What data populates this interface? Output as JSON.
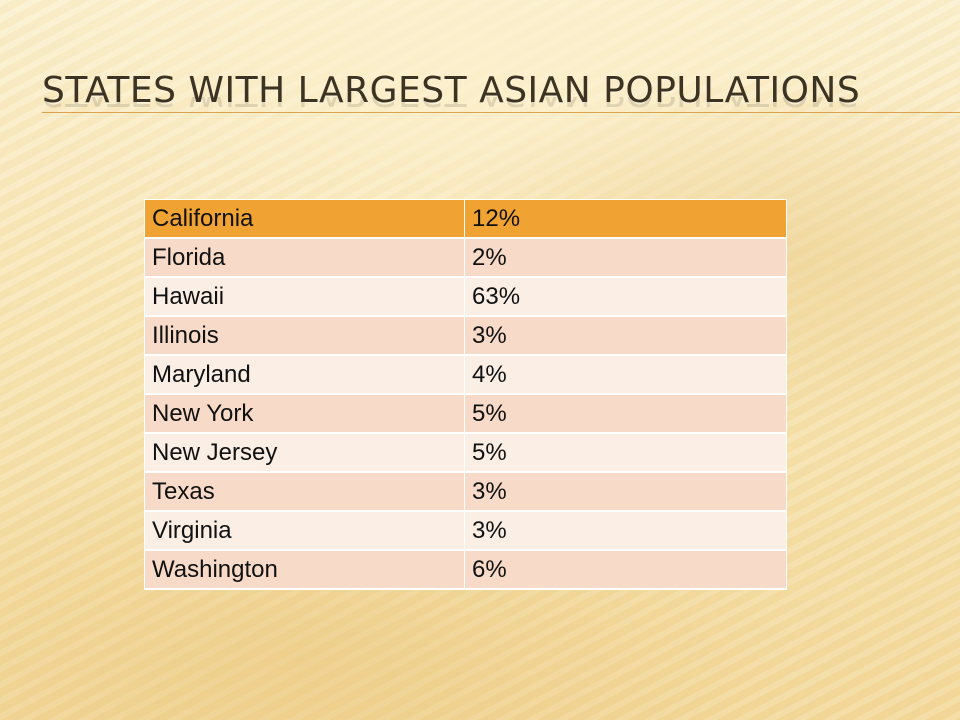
{
  "slide": {
    "title": "STATES WITH LARGEST ASIAN POPULATIONS"
  },
  "table": {
    "rows": [
      {
        "state": "California",
        "percent": "12%"
      },
      {
        "state": "Florida",
        "percent": "2%"
      },
      {
        "state": "Hawaii",
        "percent": "63%"
      },
      {
        "state": "Illinois",
        "percent": "3%"
      },
      {
        "state": "Maryland",
        "percent": "4%"
      },
      {
        "state": "New York",
        "percent": "5%"
      },
      {
        "state": "New Jersey",
        "percent": "5%"
      },
      {
        "state": "Texas",
        "percent": "3%"
      },
      {
        "state": "Virginia",
        "percent": "3%"
      },
      {
        "state": "Washington",
        "percent": "6%"
      }
    ]
  },
  "colors": {
    "header_fill": "#f0a332",
    "band_dark": "#f7dac7",
    "band_light": "#fbeee5",
    "title_text": "#3d3323",
    "rule": "#d9a352"
  }
}
